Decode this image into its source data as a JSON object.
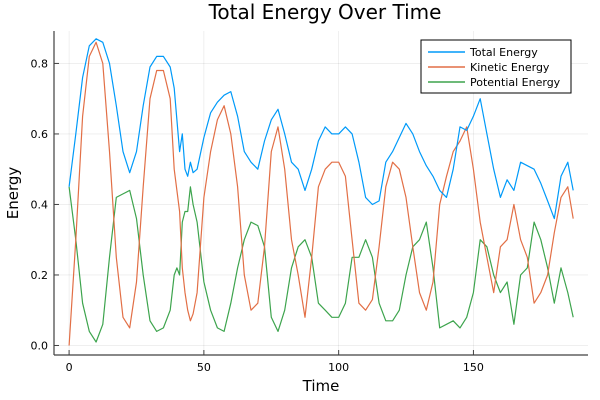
{
  "chart_data": {
    "type": "line",
    "title": "Total Energy Over Time",
    "xlabel": "Time",
    "ylabel": "Energy",
    "xlim": [
      -5.6,
      192.5
    ],
    "ylim": [
      -0.027,
      0.892
    ],
    "xticks": [
      0,
      50,
      100,
      150
    ],
    "xtick_labels": [
      "0",
      "50",
      "100",
      "150"
    ],
    "yticks": [
      0.0,
      0.2,
      0.4,
      0.6,
      0.8
    ],
    "ytick_labels": [
      "0.0",
      "0.2",
      "0.4",
      "0.6",
      "0.8"
    ],
    "grid": true,
    "legend_position": "top-right",
    "x": [
      0,
      2.5,
      5,
      7.5,
      10,
      12.5,
      15,
      17.5,
      20,
      22.5,
      25,
      27.5,
      30,
      32.5,
      35,
      37.5,
      39,
      40,
      41,
      42,
      43,
      44,
      45,
      46,
      47.5,
      50,
      52.5,
      55,
      57.5,
      60,
      62.5,
      65,
      67.5,
      70,
      72.5,
      75,
      77.5,
      80,
      82.5,
      85,
      87.5,
      90,
      92.5,
      95,
      97.5,
      100,
      102.5,
      105,
      107.5,
      110,
      112.5,
      115,
      117.5,
      120,
      122.5,
      125,
      127.5,
      130,
      132.5,
      135,
      137.5,
      140,
      142.5,
      145,
      147.5,
      150,
      152.5,
      155,
      157.5,
      160,
      162.5,
      165,
      167.5,
      170,
      172.5,
      175,
      177.5,
      180,
      182.5,
      185,
      187
    ],
    "series": [
      {
        "name": "Total Energy",
        "color": "#009af9",
        "values": [
          0.45,
          0.6,
          0.76,
          0.85,
          0.87,
          0.86,
          0.8,
          0.68,
          0.55,
          0.49,
          0.55,
          0.68,
          0.79,
          0.82,
          0.82,
          0.79,
          0.73,
          0.64,
          0.55,
          0.6,
          0.5,
          0.48,
          0.52,
          0.49,
          0.5,
          0.59,
          0.66,
          0.69,
          0.71,
          0.72,
          0.65,
          0.55,
          0.52,
          0.5,
          0.58,
          0.64,
          0.67,
          0.6,
          0.52,
          0.5,
          0.44,
          0.5,
          0.58,
          0.62,
          0.6,
          0.6,
          0.62,
          0.6,
          0.52,
          0.42,
          0.4,
          0.41,
          0.52,
          0.55,
          0.59,
          0.63,
          0.6,
          0.55,
          0.51,
          0.48,
          0.44,
          0.42,
          0.5,
          0.62,
          0.61,
          0.65,
          0.7,
          0.6,
          0.5,
          0.42,
          0.47,
          0.44,
          0.52,
          0.51,
          0.5,
          0.46,
          0.41,
          0.36,
          0.48,
          0.52,
          0.44
        ]
      },
      {
        "name": "Kinetic Energy",
        "color": "#e26f46",
        "values": [
          0.0,
          0.3,
          0.65,
          0.82,
          0.86,
          0.8,
          0.55,
          0.25,
          0.08,
          0.05,
          0.18,
          0.45,
          0.7,
          0.78,
          0.78,
          0.7,
          0.5,
          0.44,
          0.38,
          0.22,
          0.15,
          0.1,
          0.07,
          0.09,
          0.15,
          0.42,
          0.55,
          0.64,
          0.68,
          0.6,
          0.45,
          0.2,
          0.1,
          0.12,
          0.28,
          0.55,
          0.62,
          0.5,
          0.3,
          0.2,
          0.08,
          0.25,
          0.45,
          0.5,
          0.52,
          0.52,
          0.48,
          0.3,
          0.12,
          0.1,
          0.13,
          0.28,
          0.45,
          0.52,
          0.5,
          0.42,
          0.28,
          0.15,
          0.1,
          0.18,
          0.4,
          0.48,
          0.55,
          0.58,
          0.62,
          0.5,
          0.35,
          0.25,
          0.15,
          0.28,
          0.3,
          0.4,
          0.3,
          0.25,
          0.12,
          0.15,
          0.2,
          0.32,
          0.42,
          0.45,
          0.36
        ]
      },
      {
        "name": "Potential Energy",
        "color": "#3da44d",
        "values": [
          0.45,
          0.3,
          0.12,
          0.04,
          0.01,
          0.06,
          0.25,
          0.42,
          0.43,
          0.44,
          0.36,
          0.2,
          0.07,
          0.04,
          0.05,
          0.1,
          0.2,
          0.22,
          0.2,
          0.35,
          0.38,
          0.38,
          0.45,
          0.4,
          0.35,
          0.18,
          0.1,
          0.05,
          0.04,
          0.12,
          0.22,
          0.3,
          0.35,
          0.34,
          0.28,
          0.08,
          0.04,
          0.1,
          0.22,
          0.28,
          0.3,
          0.25,
          0.12,
          0.1,
          0.08,
          0.08,
          0.12,
          0.25,
          0.25,
          0.3,
          0.25,
          0.12,
          0.07,
          0.07,
          0.1,
          0.2,
          0.28,
          0.3,
          0.35,
          0.22,
          0.05,
          0.06,
          0.07,
          0.05,
          0.08,
          0.15,
          0.3,
          0.28,
          0.2,
          0.15,
          0.18,
          0.06,
          0.2,
          0.22,
          0.35,
          0.3,
          0.22,
          0.12,
          0.22,
          0.15,
          0.08
        ]
      }
    ]
  }
}
